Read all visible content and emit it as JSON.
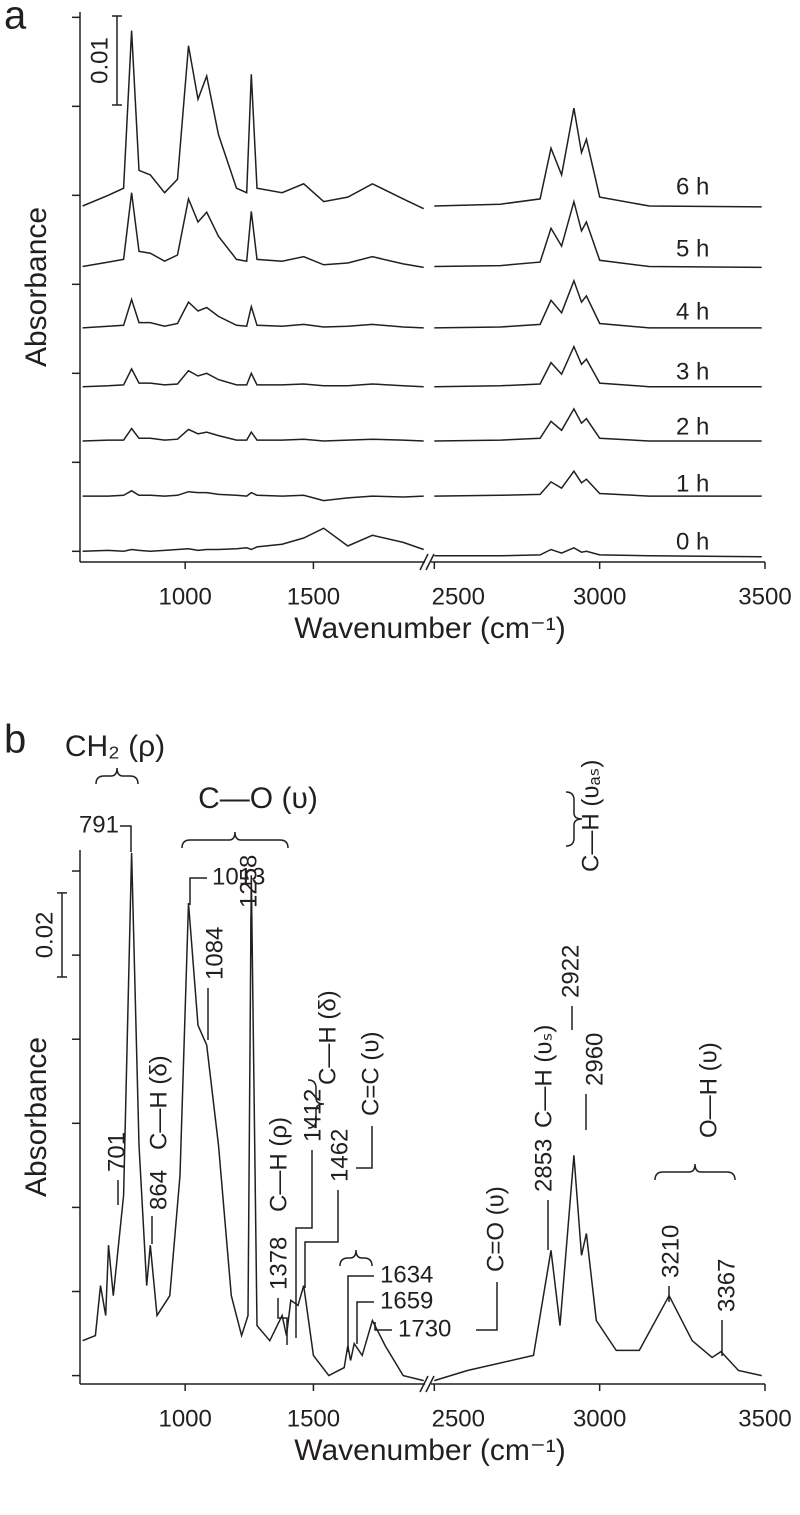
{
  "chart_data": [
    {
      "type": "line",
      "panel_label": "a",
      "ylabel": "Absorbance",
      "xlabel": "Wavenumber (cm⁻¹)",
      "color": "#231f20",
      "x_segments": [
        {
          "xlim": [
            590,
            1935
          ],
          "xticks": [
            1000,
            1500
          ],
          "x": [
            600,
            700,
            760,
            791,
            820,
            864,
            920,
            970,
            1013,
            1050,
            1084,
            1130,
            1200,
            1240,
            1258,
            1280,
            1378,
            1462,
            1540,
            1634,
            1730,
            1850,
            1930
          ]
        },
        {
          "xlim": [
            2490,
            3500
          ],
          "xticks": [
            2500,
            3000,
            3500
          ],
          "x": [
            2500,
            2700,
            2820,
            2853,
            2885,
            2922,
            2945,
            2960,
            3000,
            3150,
            3490
          ]
        }
      ],
      "ylim": [
        -0.0012,
        0.0606
      ],
      "yticks": [
        0,
        0.01,
        0.02,
        0.03,
        0.04,
        0.05,
        0.06
      ],
      "scale_bar": 0.01,
      "series": [
        {
          "name": "6 h",
          "values": [
            [
              0.0388,
              0.04,
              0.0408,
              0.0585,
              0.0428,
              0.0423,
              0.0403,
              0.0418,
              0.0568,
              0.0508,
              0.0534,
              0.0468,
              0.0408,
              0.0403,
              0.0536,
              0.0408,
              0.0403,
              0.0413,
              0.0393,
              0.0398,
              0.0413,
              0.0396,
              0.0385
            ],
            [
              0.0388,
              0.039,
              0.0396,
              0.0453,
              0.0423,
              0.0498,
              0.0448,
              0.0463,
              0.0398,
              0.0388,
              0.0387
            ]
          ]
        },
        {
          "name": "5 h",
          "values": [
            [
              0.032,
              0.0325,
              0.0328,
              0.0403,
              0.0337,
              0.0335,
              0.0326,
              0.0333,
              0.0396,
              0.037,
              0.0381,
              0.0354,
              0.0328,
              0.0326,
              0.0382,
              0.0328,
              0.0326,
              0.0331,
              0.0322,
              0.0324,
              0.0331,
              0.0323,
              0.0319
            ],
            [
              0.032,
              0.0321,
              0.0325,
              0.0363,
              0.0343,
              0.0393,
              0.036,
              0.037,
              0.0327,
              0.032,
              0.0319
            ]
          ]
        },
        {
          "name": "4 h",
          "values": [
            [
              0.0251,
              0.0253,
              0.0254,
              0.0283,
              0.0257,
              0.0257,
              0.0253,
              0.0256,
              0.028,
              0.027,
              0.0274,
              0.0264,
              0.0254,
              0.0253,
              0.0275,
              0.0254,
              0.0253,
              0.0255,
              0.0252,
              0.0253,
              0.0255,
              0.0252,
              0.0251
            ],
            [
              0.0251,
              0.0252,
              0.0255,
              0.0282,
              0.0268,
              0.0304,
              0.028,
              0.0287,
              0.0256,
              0.0251,
              0.0251
            ]
          ]
        },
        {
          "name": "3 h",
          "values": [
            [
              0.0185,
              0.0186,
              0.0187,
              0.0205,
              0.0189,
              0.0189,
              0.0187,
              0.0188,
              0.0203,
              0.0197,
              0.02,
              0.0193,
              0.0187,
              0.0187,
              0.02,
              0.0187,
              0.0187,
              0.0188,
              0.0186,
              0.0186,
              0.0188,
              0.0186,
              0.0185
            ],
            [
              0.0185,
              0.0186,
              0.0188,
              0.0212,
              0.0199,
              0.023,
              0.021,
              0.0216,
              0.0189,
              0.0185,
              0.0185
            ]
          ]
        },
        {
          "name": "2 h",
          "values": [
            [
              0.0124,
              0.0125,
              0.0125,
              0.0138,
              0.0127,
              0.0127,
              0.0125,
              0.0126,
              0.0137,
              0.0132,
              0.0134,
              0.013,
              0.0125,
              0.0125,
              0.0134,
              0.0125,
              0.0125,
              0.0126,
              0.0124,
              0.0125,
              0.0126,
              0.0125,
              0.0124
            ],
            [
              0.0124,
              0.0125,
              0.0127,
              0.0146,
              0.0136,
              0.016,
              0.0144,
              0.0149,
              0.0127,
              0.0124,
              0.0124
            ]
          ]
        },
        {
          "name": "1 h",
          "values": [
            [
              0.0062,
              0.0062,
              0.0063,
              0.0068,
              0.0063,
              0.0063,
              0.0062,
              0.0063,
              0.0067,
              0.0066,
              0.0066,
              0.0064,
              0.0063,
              0.0062,
              0.0066,
              0.0063,
              0.0062,
              0.0063,
              0.0057,
              0.006,
              0.0062,
              0.0061,
              0.0062
            ],
            [
              0.0062,
              0.0063,
              0.0064,
              0.0078,
              0.0071,
              0.009,
              0.0077,
              0.0081,
              0.0065,
              0.0062,
              0.0062
            ]
          ]
        },
        {
          "name": "0 h",
          "values": [
            [
              0.0,
              0.0001,
              0.0,
              0.0002,
              0.0001,
              0.0,
              0.0001,
              0.0002,
              0.0003,
              0.0001,
              0.0002,
              0.0002,
              0.0003,
              0.0004,
              0.0002,
              0.0005,
              0.0008,
              0.0015,
              0.0026,
              0.0006,
              0.0018,
              0.001,
              0.0002
            ],
            [
              -0.0005,
              -0.0005,
              -0.0004,
              0.0002,
              -0.0002,
              0.0004,
              -0.0001,
              0.0,
              -0.0004,
              -0.0005,
              -0.0006
            ]
          ]
        }
      ]
    },
    {
      "type": "line",
      "panel_label": "b",
      "ylabel": "Absorbance",
      "xlabel": "Wavenumber (cm⁻¹)",
      "color": "#231f20",
      "x_segments": [
        {
          "xlim": [
            590,
            1935
          ],
          "xticks": [
            1000,
            1500
          ],
          "x": [
            600,
            650,
            670,
            690,
            701,
            720,
            760,
            791,
            820,
            850,
            864,
            890,
            940,
            980,
            1013,
            1050,
            1084,
            1130,
            1180,
            1220,
            1245,
            1258,
            1280,
            1330,
            1378,
            1395,
            1412,
            1440,
            1462,
            1500,
            1560,
            1620,
            1634,
            1645,
            1659,
            1690,
            1730,
            1780,
            1850,
            1930
          ]
        },
        {
          "xlim": [
            2490,
            3500
          ],
          "xticks": [
            2500,
            3000,
            3500
          ],
          "x": [
            2500,
            2600,
            2800,
            2853,
            2880,
            2922,
            2945,
            2960,
            2990,
            3050,
            3120,
            3210,
            3280,
            3340,
            3367,
            3420,
            3490
          ]
        }
      ],
      "ylim": [
        -0.002,
        0.125
      ],
      "yticks": [
        0,
        0.02,
        0.04,
        0.06,
        0.08,
        0.1,
        0.12
      ],
      "scale_bar": 0.02,
      "series": [
        {
          "values": [
            [
              0.0083,
              0.0095,
              0.0214,
              0.0143,
              0.031,
              0.019,
              0.0429,
              0.1243,
              0.0548,
              0.0214,
              0.031,
              0.0143,
              0.019,
              0.0476,
              0.1124,
              0.0833,
              0.0786,
              0.0548,
              0.019,
              0.0095,
              0.0143,
              0.119,
              0.0119,
              0.0083,
              0.0143,
              0.0095,
              0.0179,
              0.0167,
              0.0214,
              0.0048,
              0.0,
              0.0019,
              0.0071,
              0.0036,
              0.0076,
              0.0048,
              0.0131,
              0.0071,
              0.0,
              -0.0012
            ],
            [
              -0.0012,
              0.0012,
              0.0048,
              0.0298,
              0.0119,
              0.0524,
              0.0286,
              0.0338,
              0.0131,
              0.006,
              0.006,
              0.019,
              0.0083,
              0.0043,
              0.0057,
              0.0012,
              0.0
            ]
          ]
        }
      ],
      "peaks": [
        701,
        791,
        864,
        1013,
        1084,
        1258,
        1378,
        1412,
        1462,
        1634,
        1659,
        1730,
        2853,
        2922,
        2960,
        3210,
        3367
      ],
      "assignments": [
        "CH₂ (ρ)",
        "C—O (υ)",
        "C—H (δ)",
        "C—H (ρ)",
        "C—H (δ)",
        "C=C (υ)",
        "C=O (υ)",
        "C—H (υₛ)",
        "C—H (υₐₛ)",
        "O—H (υ)"
      ]
    }
  ]
}
